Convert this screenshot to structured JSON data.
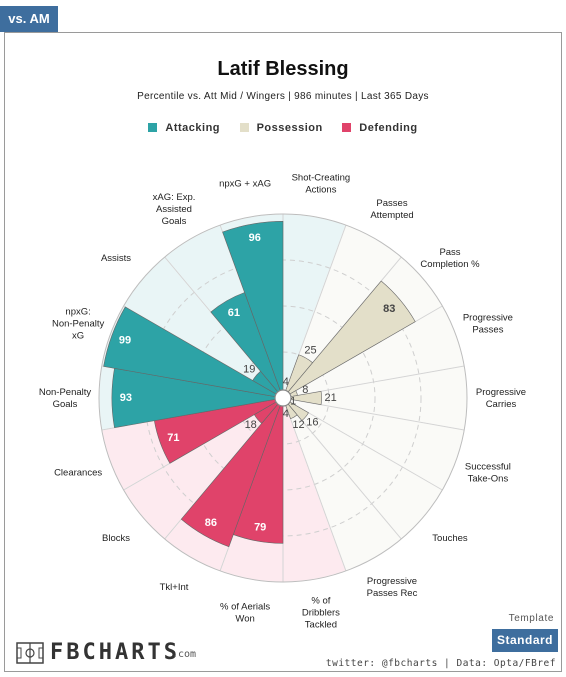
{
  "tab_label": "vs. AM",
  "chart_data": {
    "type": "polar-bar",
    "title": "Latif Blessing",
    "subtitle": "Percentile vs. Att Mid / Wingers | 986 minutes | Last 365 Days",
    "rmax": 100,
    "grid_rings": [
      25,
      50,
      75
    ],
    "legend": [
      {
        "name": "Attacking",
        "color": "#2da3a6"
      },
      {
        "name": "Possession",
        "color": "#e3dfc9"
      },
      {
        "name": "Defending",
        "color": "#e0436a"
      }
    ],
    "categories": [
      {
        "label": "Shot-Creating Actions",
        "value": 4,
        "group": "Attacking"
      },
      {
        "label": "Passes Attempted",
        "value": 25,
        "group": "Possession"
      },
      {
        "label": "Pass Completion %",
        "value": 83,
        "group": "Possession"
      },
      {
        "label": "Progressive Passes",
        "value": 8,
        "group": "Possession"
      },
      {
        "label": "Progressive Carries",
        "value": 21,
        "group": "Possession"
      },
      {
        "label": "Successful Take-Ons",
        "value": 1,
        "group": "Possession"
      },
      {
        "label": "Touches",
        "value": 16,
        "group": "Possession"
      },
      {
        "label": "Progressive Passes Rec",
        "value": 12,
        "group": "Possession"
      },
      {
        "label": "% of Dribblers Tackled",
        "value": 4,
        "group": "Defending"
      },
      {
        "label": "% of Aerials Won",
        "value": 79,
        "group": "Defending"
      },
      {
        "label": "Tkl+Int",
        "value": 86,
        "group": "Defending"
      },
      {
        "label": "Blocks",
        "value": 18,
        "group": "Defending"
      },
      {
        "label": "Clearances",
        "value": 71,
        "group": "Defending"
      },
      {
        "label": "Non-Penalty Goals",
        "value": 93,
        "group": "Attacking"
      },
      {
        "label": "npxG: Non-Penalty xG",
        "value": 99,
        "group": "Attacking"
      },
      {
        "label": "Assists",
        "value": 19,
        "group": "Attacking"
      },
      {
        "label": "xAG: Exp. Assisted Goals",
        "value": 61,
        "group": "Attacking"
      },
      {
        "label": "npxG + xAG",
        "value": 96,
        "group": "Attacking"
      }
    ]
  },
  "brand": {
    "name": "FBCHARTS",
    "suffix": ".com"
  },
  "template_label": "Template",
  "standard_button": "Standard",
  "credits": "twitter: @fbcharts | Data: Opta/FBref",
  "colors": {
    "accent": "#3e6e9e",
    "grid": "#cccccc"
  }
}
